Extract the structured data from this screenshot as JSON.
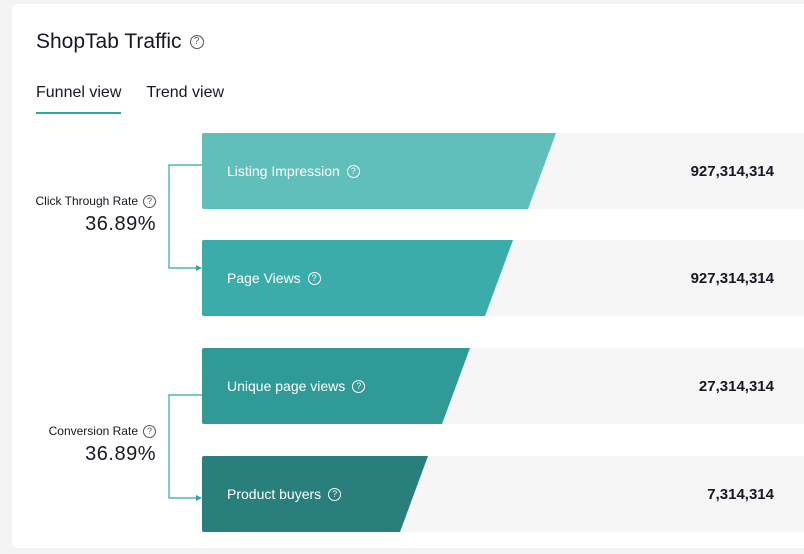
{
  "header": {
    "title": "ShopTab Traffic",
    "help_icon": "question-circle-icon"
  },
  "tabs": [
    {
      "label": "Funnel view",
      "active": true
    },
    {
      "label": "Trend view",
      "active": false
    }
  ],
  "funnel": [
    {
      "label": "Listing Impression",
      "value": "927,314,314",
      "color": "#60bfbb",
      "fill": 0.58
    },
    {
      "label": "Page Views",
      "value": "927,314,314",
      "color": "#3aaca9",
      "fill": 0.51
    },
    {
      "label": "Unique page views",
      "value": "27,314,314",
      "color": "#2f9a96",
      "fill": 0.44
    },
    {
      "label": "Product buyers",
      "value": "7,314,314",
      "color": "#297f7b",
      "fill": 0.37
    }
  ],
  "metrics": [
    {
      "label": "Click Through Rate",
      "value": "36.89%"
    },
    {
      "label": "Conversion Rate",
      "value": "36.89%"
    }
  ],
  "colors": {
    "accent": "#2ea89f",
    "row_background": "#f6f6f6"
  }
}
